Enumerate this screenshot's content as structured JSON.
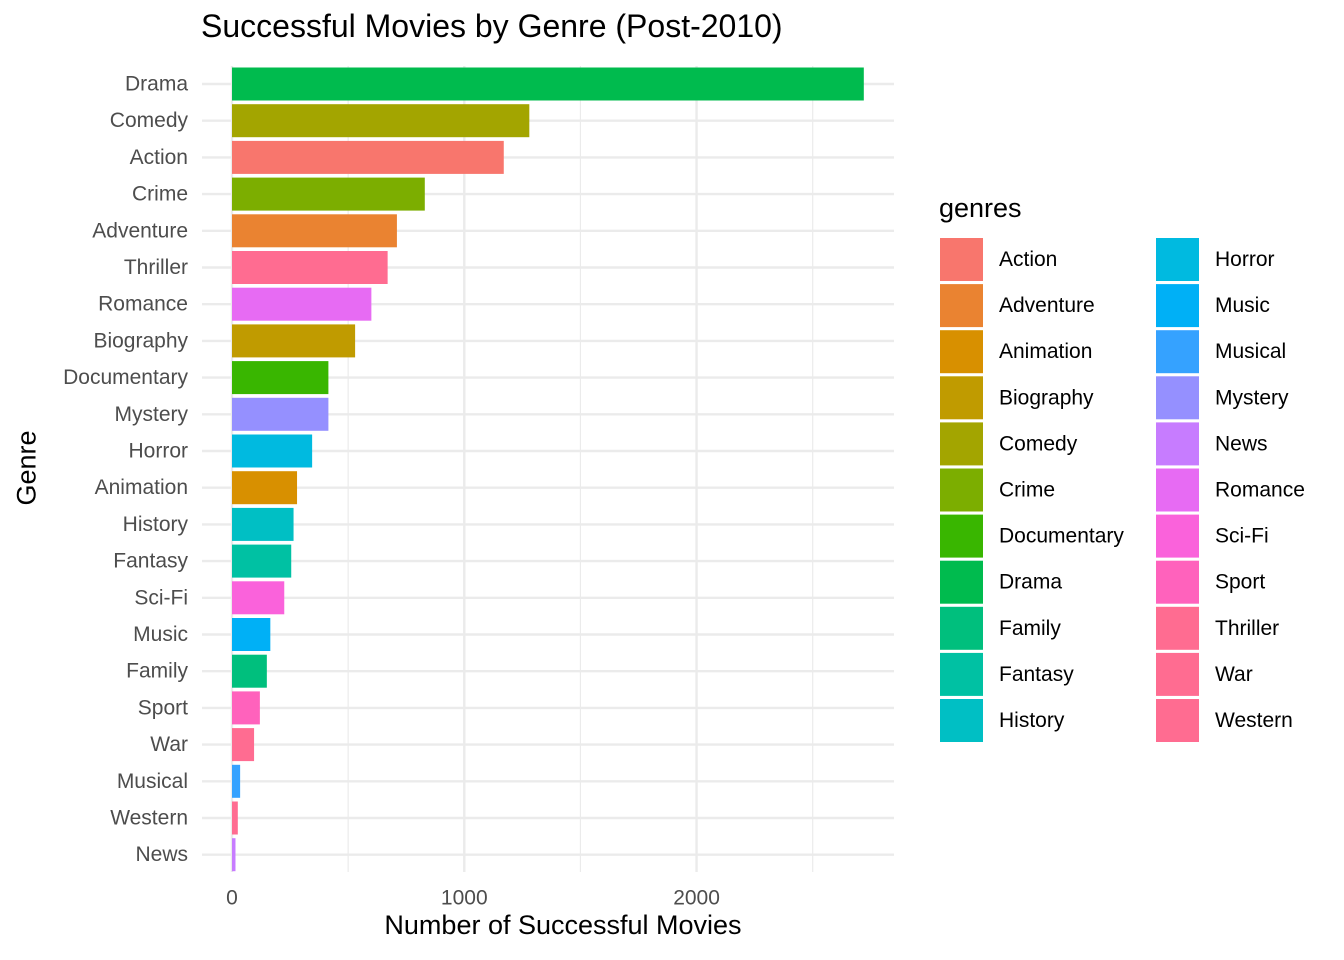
{
  "chart_data": {
    "type": "bar",
    "orientation": "horizontal",
    "title": "Successful Movies by Genre (Post-2010)",
    "xlabel": "Number of Successful Movies",
    "ylabel": "Genre",
    "xlim": [
      0,
      2850
    ],
    "x_ticks": [
      0,
      1000,
      2000
    ],
    "x_tick_labels": [
      "0",
      "1000",
      "2000"
    ],
    "grid": "on",
    "legend_title": "genres",
    "legend_position": "right",
    "categories": [
      "Drama",
      "Comedy",
      "Action",
      "Crime",
      "Adventure",
      "Thriller",
      "Romance",
      "Biography",
      "Documentary",
      "Mystery",
      "Horror",
      "Animation",
      "History",
      "Fantasy",
      "Sci-Fi",
      "Music",
      "Family",
      "Sport",
      "War",
      "Musical",
      "Western",
      "News"
    ],
    "values": [
      2720,
      1280,
      1170,
      830,
      710,
      670,
      600,
      530,
      415,
      415,
      345,
      280,
      265,
      255,
      225,
      165,
      150,
      120,
      95,
      35,
      25,
      15
    ],
    "colors": {
      "Action": "#F8766D",
      "Adventure": "#EA8331",
      "Animation": "#D89000",
      "Biography": "#C09B00",
      "Comedy": "#A3A500",
      "Crime": "#7CAE00",
      "Documentary": "#39B600",
      "Drama": "#00BB4E",
      "Family": "#00BF7D",
      "Fantasy": "#00C1A3",
      "History": "#00BFC4",
      "Horror": "#00BAE0",
      "Music": "#00B0F6",
      "Musical": "#35A2FF",
      "Mystery": "#9590FF",
      "News": "#C77CFF",
      "Romance": "#E76BF3",
      "Sci-Fi": "#FA62DB",
      "Sport": "#FF62BC",
      "Thriller": "#FF6C91",
      "War": "#FF6C91",
      "Western": "#FF6C91"
    },
    "legend_entries": [
      "Action",
      "Adventure",
      "Animation",
      "Biography",
      "Comedy",
      "Crime",
      "Documentary",
      "Drama",
      "Family",
      "Fantasy",
      "History",
      "Horror",
      "Music",
      "Musical",
      "Mystery",
      "News",
      "Romance",
      "Sci-Fi",
      "Sport",
      "Thriller",
      "War",
      "Western"
    ]
  }
}
